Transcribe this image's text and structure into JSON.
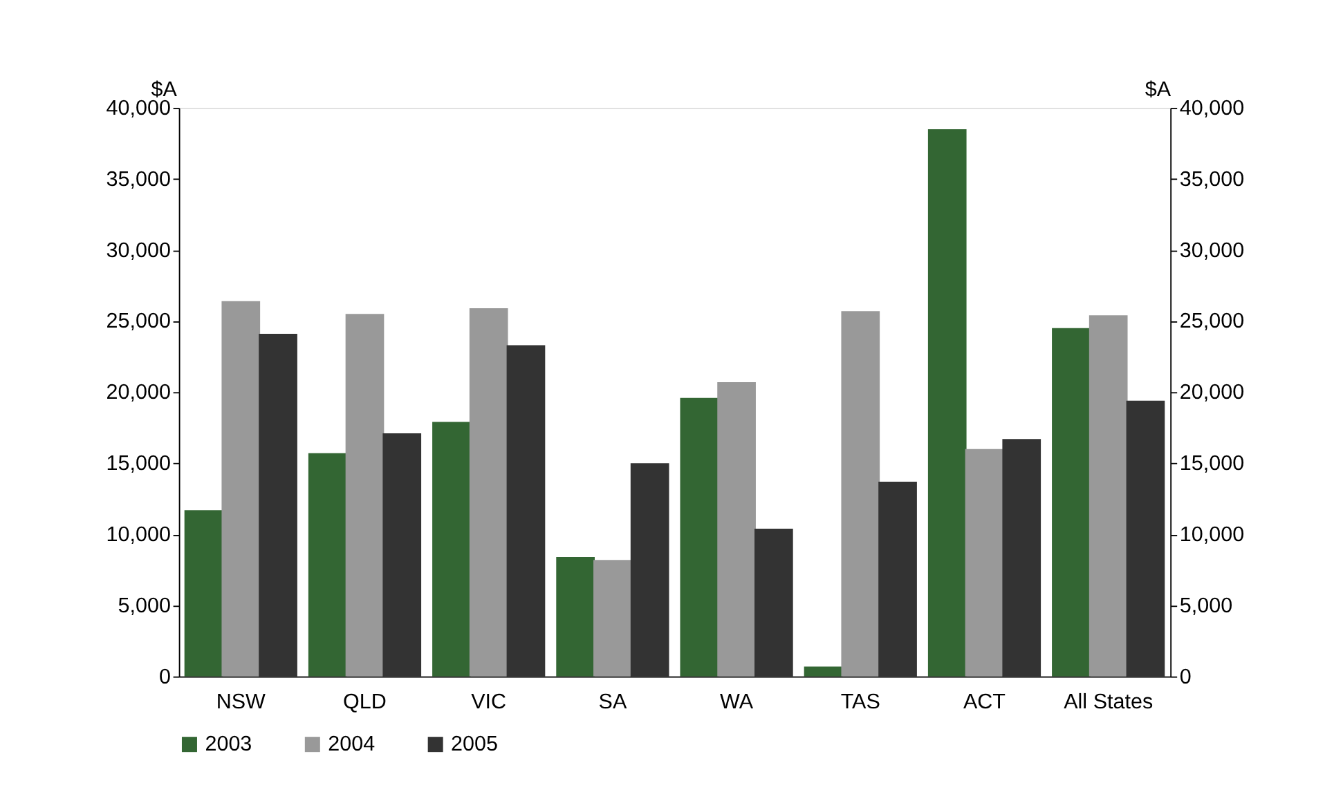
{
  "chart_data": {
    "type": "bar",
    "categories": [
      "NSW",
      "QLD",
      "VIC",
      "SA",
      "WA",
      "TAS",
      "ACT",
      "All States"
    ],
    "series": [
      {
        "name": "2003",
        "color": "#336633",
        "values": [
          11700,
          15700,
          17900,
          8400,
          19600,
          700,
          38500,
          24500
        ]
      },
      {
        "name": "2004",
        "color": "#999999",
        "values": [
          26400,
          25500,
          25900,
          8200,
          20700,
          25700,
          16000,
          25400
        ]
      },
      {
        "name": "2005",
        "color": "#333333",
        "values": [
          24100,
          17100,
          23300,
          15000,
          10400,
          13700,
          16700,
          19400
        ]
      }
    ],
    "ylabel": "$A",
    "y2label": "$A",
    "ylim": [
      0,
      40000
    ],
    "yticks": [
      0,
      {
        "value": 5000,
        "label": "5,000"
      },
      {
        "value": 10000,
        "label": "10,000"
      },
      {
        "value": 15000,
        "label": "15,000"
      },
      {
        "value": 20000,
        "label": "20,000"
      },
      {
        "value": 25000,
        "label": "25,000"
      },
      {
        "value": 30000,
        "label": "30,000"
      },
      {
        "value": 35000,
        "label": "35,000"
      },
      {
        "value": 40000,
        "label": "40,000"
      }
    ],
    "y2lim": [
      0,
      40000
    ],
    "y2ticks": [
      0,
      {
        "value": 5000,
        "label": "5,000"
      },
      {
        "value": 10000,
        "label": "10,000"
      },
      {
        "value": 15000,
        "label": "15,000"
      },
      {
        "value": 20000,
        "label": "20,000"
      },
      {
        "value": 25000,
        "label": "25,000"
      },
      {
        "value": 30000,
        "label": "30,000"
      },
      {
        "value": 35000,
        "label": "35,000"
      },
      {
        "value": 40000,
        "label": "40,000"
      }
    ],
    "grid": false,
    "legend": "bottom"
  }
}
